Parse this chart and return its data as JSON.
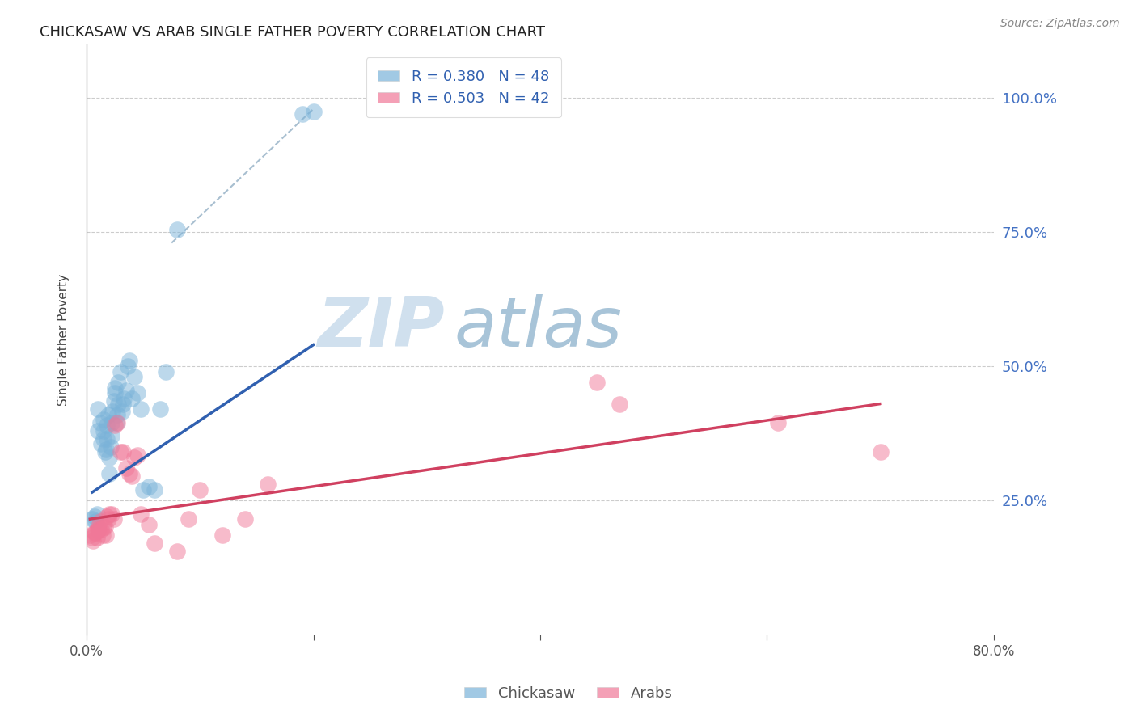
{
  "title": "CHICKASAW VS ARAB SINGLE FATHER POVERTY CORRELATION CHART",
  "source": "Source: ZipAtlas.com",
  "ylabel": "Single Father Poverty",
  "ytick_labels": [
    "100.0%",
    "75.0%",
    "50.0%",
    "25.0%"
  ],
  "ytick_positions": [
    1.0,
    0.75,
    0.5,
    0.25
  ],
  "xlim": [
    0.0,
    0.8
  ],
  "ylim": [
    0.0,
    1.1
  ],
  "legend_line1": "R = 0.380   N = 48",
  "legend_line2": "R = 0.503   N = 42",
  "chickasaw_color": "#7ab3d9",
  "arab_color": "#f07898",
  "trendline_blue_color": "#3060b0",
  "trendline_pink_color": "#d04060",
  "dashed_line_color": "#a8bfd0",
  "chickasaw_x": [
    0.005,
    0.007,
    0.008,
    0.009,
    0.01,
    0.01,
    0.012,
    0.013,
    0.015,
    0.015,
    0.015,
    0.016,
    0.017,
    0.018,
    0.018,
    0.019,
    0.02,
    0.02,
    0.021,
    0.022,
    0.022,
    0.023,
    0.024,
    0.025,
    0.025,
    0.026,
    0.027,
    0.028,
    0.028,
    0.03,
    0.031,
    0.032,
    0.033,
    0.035,
    0.036,
    0.038,
    0.04,
    0.042,
    0.045,
    0.048,
    0.05,
    0.055,
    0.06,
    0.065,
    0.07,
    0.08,
    0.19,
    0.2
  ],
  "chickasaw_y": [
    0.215,
    0.22,
    0.21,
    0.225,
    0.38,
    0.42,
    0.395,
    0.355,
    0.38,
    0.4,
    0.365,
    0.34,
    0.345,
    0.365,
    0.39,
    0.41,
    0.3,
    0.33,
    0.35,
    0.37,
    0.395,
    0.415,
    0.435,
    0.45,
    0.46,
    0.395,
    0.41,
    0.43,
    0.47,
    0.49,
    0.415,
    0.43,
    0.44,
    0.455,
    0.5,
    0.51,
    0.44,
    0.48,
    0.45,
    0.42,
    0.27,
    0.275,
    0.27,
    0.42,
    0.49,
    0.755,
    0.97,
    0.975
  ],
  "arab_x": [
    0.003,
    0.005,
    0.006,
    0.007,
    0.008,
    0.009,
    0.01,
    0.01,
    0.011,
    0.012,
    0.013,
    0.014,
    0.015,
    0.016,
    0.017,
    0.018,
    0.019,
    0.02,
    0.022,
    0.024,
    0.025,
    0.027,
    0.03,
    0.032,
    0.035,
    0.038,
    0.04,
    0.042,
    0.045,
    0.048,
    0.055,
    0.06,
    0.08,
    0.09,
    0.1,
    0.12,
    0.14,
    0.16,
    0.45,
    0.47,
    0.61,
    0.7
  ],
  "arab_y": [
    0.185,
    0.18,
    0.175,
    0.19,
    0.19,
    0.18,
    0.2,
    0.195,
    0.195,
    0.21,
    0.195,
    0.185,
    0.2,
    0.2,
    0.185,
    0.22,
    0.215,
    0.225,
    0.225,
    0.215,
    0.39,
    0.395,
    0.34,
    0.34,
    0.31,
    0.3,
    0.295,
    0.33,
    0.335,
    0.225,
    0.205,
    0.17,
    0.155,
    0.215,
    0.27,
    0.185,
    0.215,
    0.28,
    0.47,
    0.43,
    0.395,
    0.34
  ],
  "blue_trend_x": [
    0.005,
    0.2
  ],
  "blue_trend_y": [
    0.265,
    0.54
  ],
  "pink_trend_x": [
    0.003,
    0.7
  ],
  "pink_trend_y": [
    0.215,
    0.43
  ],
  "dash_line_x": [
    0.075,
    0.2
  ],
  "dash_line_y": [
    0.73,
    0.98
  ]
}
